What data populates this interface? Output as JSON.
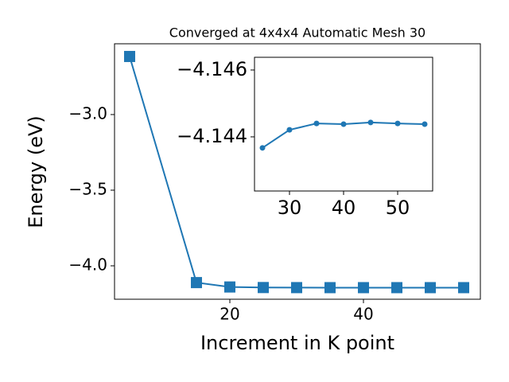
{
  "chart_data": [
    {
      "type": "line",
      "title": "Converged at 4x4x4 Automatic Mesh 30",
      "x_label": "Increment in K point",
      "y_label": "Energy (eV)",
      "marker": "square",
      "color": "#1f77b4",
      "series": [
        {
          "x": [
            5,
            15,
            20,
            25,
            30,
            35,
            40,
            45,
            50,
            55
          ],
          "values": [
            -2.616,
            -4.111,
            -4.14,
            -4.1437,
            -4.1442,
            -4.1444,
            -4.1444,
            -4.1444,
            -4.1444,
            -4.1444
          ]
        }
      ],
      "xlim": [
        2.74,
        57.5
      ],
      "ylim": [
        -4.221,
        -2.532
      ],
      "xticks": [
        20,
        40
      ],
      "yticks": [
        {
          "value": -4.0,
          "label": "−4.0"
        },
        {
          "value": -3.5,
          "label": "−3.5"
        },
        {
          "value": -3.0,
          "label": "−3.0"
        }
      ]
    },
    {
      "type": "line",
      "marker": "circle",
      "color": "#1f77b4",
      "series": [
        {
          "x": [
            25,
            30,
            35,
            40,
            45,
            50,
            55
          ],
          "values": [
            -4.14367,
            -4.14421,
            -4.1444,
            -4.14438,
            -4.14443,
            -4.1444,
            -4.14438
          ]
        }
      ],
      "xlim": [
        23.53,
        56.47
      ],
      "ylim": [
        -4.14238,
        -4.14638
      ],
      "xticks": [
        30,
        40,
        50
      ],
      "yticks": [
        {
          "value": -4.146,
          "label": "−4.146"
        },
        {
          "value": -4.144,
          "label": "−4.144"
        }
      ]
    }
  ]
}
